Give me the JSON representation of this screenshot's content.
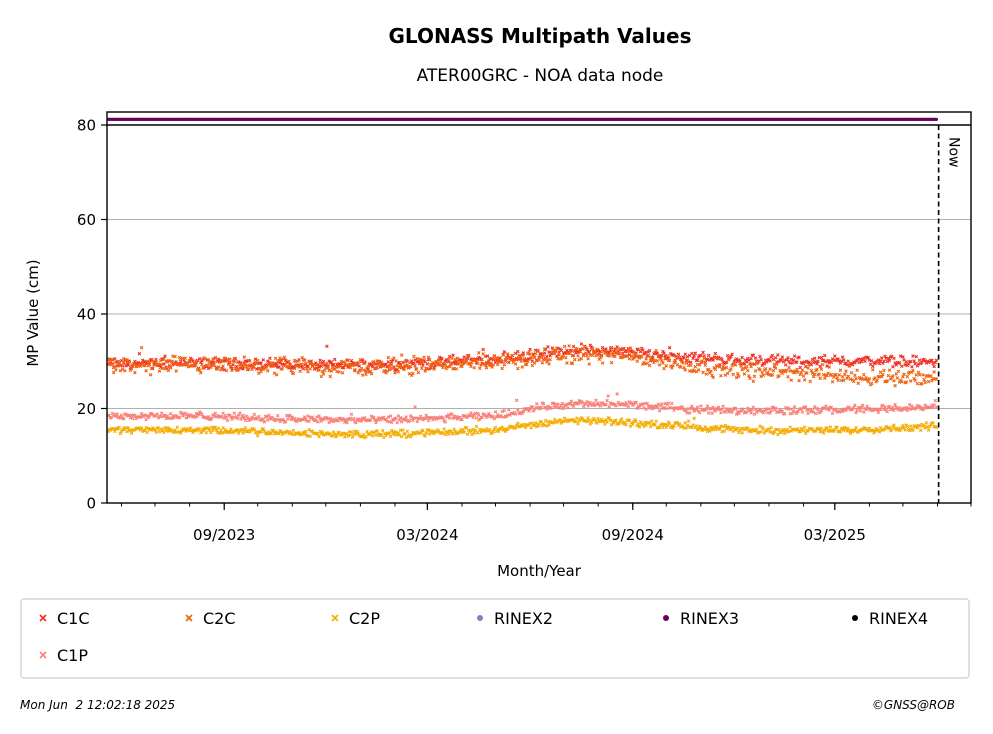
{
  "chart_data": {
    "type": "scatter",
    "title": "GLONASS Multipath Values",
    "subtitle": "ATER00GRC - NOA data node",
    "xlabel": "Month/Year",
    "ylabel": "MP Value (cm)",
    "x_range": [
      "2023-05-19",
      "2025-07-01"
    ],
    "ylim": [
      0,
      80
    ],
    "y_ticks": [
      0,
      20,
      40,
      60,
      80
    ],
    "x_ticks": [
      {
        "date": "2023-09-01",
        "label": "09/2023"
      },
      {
        "date": "2024-03-01",
        "label": "03/2024"
      },
      {
        "date": "2024-09-01",
        "label": "09/2024"
      },
      {
        "date": "2025-03-01",
        "label": "03/2025"
      }
    ],
    "grid": "horizontal",
    "now_marker": {
      "date": "2025-06-02",
      "label": "Now"
    },
    "legend_position": "bottom",
    "series": [
      {
        "name": "C1C",
        "marker": "x",
        "color": "#ee3024",
        "points": [
          [
            "2023-05-20",
            29.5
          ],
          [
            "2023-07-01",
            29.5
          ],
          [
            "2023-09-01",
            29.5
          ],
          [
            "2023-11-01",
            29.3
          ],
          [
            "2024-01-01",
            29.2
          ],
          [
            "2024-03-01",
            29.6
          ],
          [
            "2024-05-01",
            30.5
          ],
          [
            "2024-06-15",
            31.5
          ],
          [
            "2024-07-15",
            32.5
          ],
          [
            "2024-09-01",
            31.8
          ],
          [
            "2024-10-15",
            31.0
          ],
          [
            "2024-12-01",
            30.3
          ],
          [
            "2025-02-01",
            30.0
          ],
          [
            "2025-04-01",
            30.0
          ],
          [
            "2025-05-31",
            29.8
          ]
        ]
      },
      {
        "name": "C2C",
        "marker": "x",
        "color": "#f0620f",
        "points": [
          [
            "2023-05-20",
            29.0
          ],
          [
            "2023-07-01",
            29.0
          ],
          [
            "2023-09-01",
            29.0
          ],
          [
            "2023-11-01",
            28.8
          ],
          [
            "2024-01-01",
            28.7
          ],
          [
            "2024-03-01",
            29.2
          ],
          [
            "2024-05-01",
            30.0
          ],
          [
            "2024-06-15",
            30.8
          ],
          [
            "2024-07-15",
            31.5
          ],
          [
            "2024-09-01",
            31.0
          ],
          [
            "2024-10-15",
            29.5
          ],
          [
            "2024-12-01",
            28.0
          ],
          [
            "2025-02-01",
            27.5
          ],
          [
            "2025-04-01",
            26.8
          ],
          [
            "2025-05-31",
            26.5
          ]
        ]
      },
      {
        "name": "C2P",
        "marker": "x",
        "color": "#f4ac00",
        "points": [
          [
            "2023-05-20",
            15.5
          ],
          [
            "2023-07-01",
            15.5
          ],
          [
            "2023-09-01",
            15.3
          ],
          [
            "2023-11-01",
            14.8
          ],
          [
            "2024-01-01",
            14.5
          ],
          [
            "2024-03-01",
            14.8
          ],
          [
            "2024-05-01",
            15.5
          ],
          [
            "2024-06-15",
            17.0
          ],
          [
            "2024-07-15",
            17.5
          ],
          [
            "2024-09-01",
            17.0
          ],
          [
            "2024-10-15",
            16.3
          ],
          [
            "2024-12-01",
            15.5
          ],
          [
            "2025-02-01",
            15.3
          ],
          [
            "2025-04-01",
            15.6
          ],
          [
            "2025-05-31",
            16.3
          ]
        ]
      },
      {
        "name": "RINEX2",
        "marker": "circle",
        "color": "#7f7fbf",
        "points": []
      },
      {
        "name": "RINEX3",
        "marker": "circle",
        "color": "#680060",
        "points": [
          [
            "2023-05-20",
            81.2
          ],
          [
            "2025-05-31",
            81.2
          ]
        ]
      },
      {
        "name": "RINEX4",
        "marker": "circle",
        "color": "#000000",
        "points": []
      },
      {
        "name": "C1P",
        "marker": "x",
        "color": "#f88078",
        "points": [
          [
            "2023-05-20",
            18.5
          ],
          [
            "2023-07-01",
            18.5
          ],
          [
            "2023-09-01",
            18.3
          ],
          [
            "2023-11-01",
            17.8
          ],
          [
            "2024-01-01",
            17.5
          ],
          [
            "2024-03-01",
            17.8
          ],
          [
            "2024-05-01",
            18.5
          ],
          [
            "2024-06-15",
            20.5
          ],
          [
            "2024-07-15",
            21.0
          ],
          [
            "2024-09-01",
            20.8
          ],
          [
            "2024-10-15",
            20.0
          ],
          [
            "2024-12-01",
            19.6
          ],
          [
            "2025-02-01",
            19.6
          ],
          [
            "2025-04-01",
            19.8
          ],
          [
            "2025-05-31",
            20.3
          ]
        ]
      }
    ]
  },
  "footer": {
    "timestamp": "Mon Jun  2 12:02:18 2025",
    "credit": "©GNSS@ROB"
  }
}
